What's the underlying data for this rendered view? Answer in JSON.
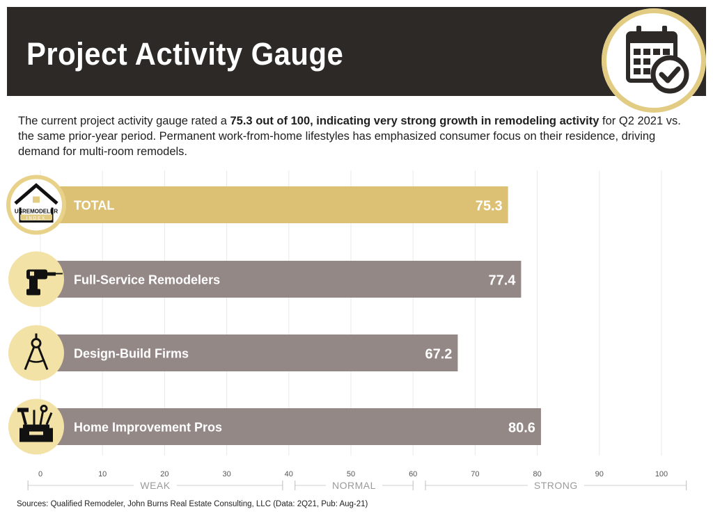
{
  "header": {
    "title": "Project Activity Gauge",
    "icon": "calendar-check-icon"
  },
  "description": {
    "part1": "The current project activity gauge rated a ",
    "bold": "75.3 out of 100, indicating very strong growth in remodeling activity",
    "part2": " for Q2 2021 vs. the same prior-year period. Permanent work-from-home lifestyles has emphasized consumer focus on their residence, driving demand for multi-room remodels."
  },
  "logo": {
    "name": "us-remodeler-index-logo",
    "text": "USREMODELER",
    "subtext": "INDEX"
  },
  "chart_data": {
    "type": "bar",
    "orientation": "horizontal",
    "categories": [
      "TOTAL",
      "Full-Service Remodelers",
      "Design-Build Firms",
      "Home Improvement Pros"
    ],
    "values": [
      75.3,
      77.4,
      67.2,
      80.6
    ],
    "value_labels": [
      "75.3",
      "77.4",
      "67.2",
      "80.6"
    ],
    "icons": [
      "house-logo-icon",
      "drill-icon",
      "compass-icon",
      "toolbox-icon"
    ],
    "colors": [
      "#dcc174",
      "#948886",
      "#948886",
      "#948886"
    ],
    "icon_circle_color": "#f3e2a6",
    "xlim": [
      0,
      100
    ],
    "xticks": [
      "0",
      "10",
      "20",
      "30",
      "40",
      "50",
      "60",
      "70",
      "80",
      "90",
      "100"
    ],
    "grid": true,
    "zones": [
      {
        "label": "WEAK",
        "range": [
          -2,
          39
        ]
      },
      {
        "label": "NORMAL",
        "range": [
          41,
          60
        ]
      },
      {
        "label": "STRONG",
        "range": [
          62,
          104
        ]
      }
    ]
  },
  "sources": "Sources: Qualified Remodeler, John Burns Real Estate Consulting, LLC (Data: 2Q21, Pub: Aug-21)"
}
